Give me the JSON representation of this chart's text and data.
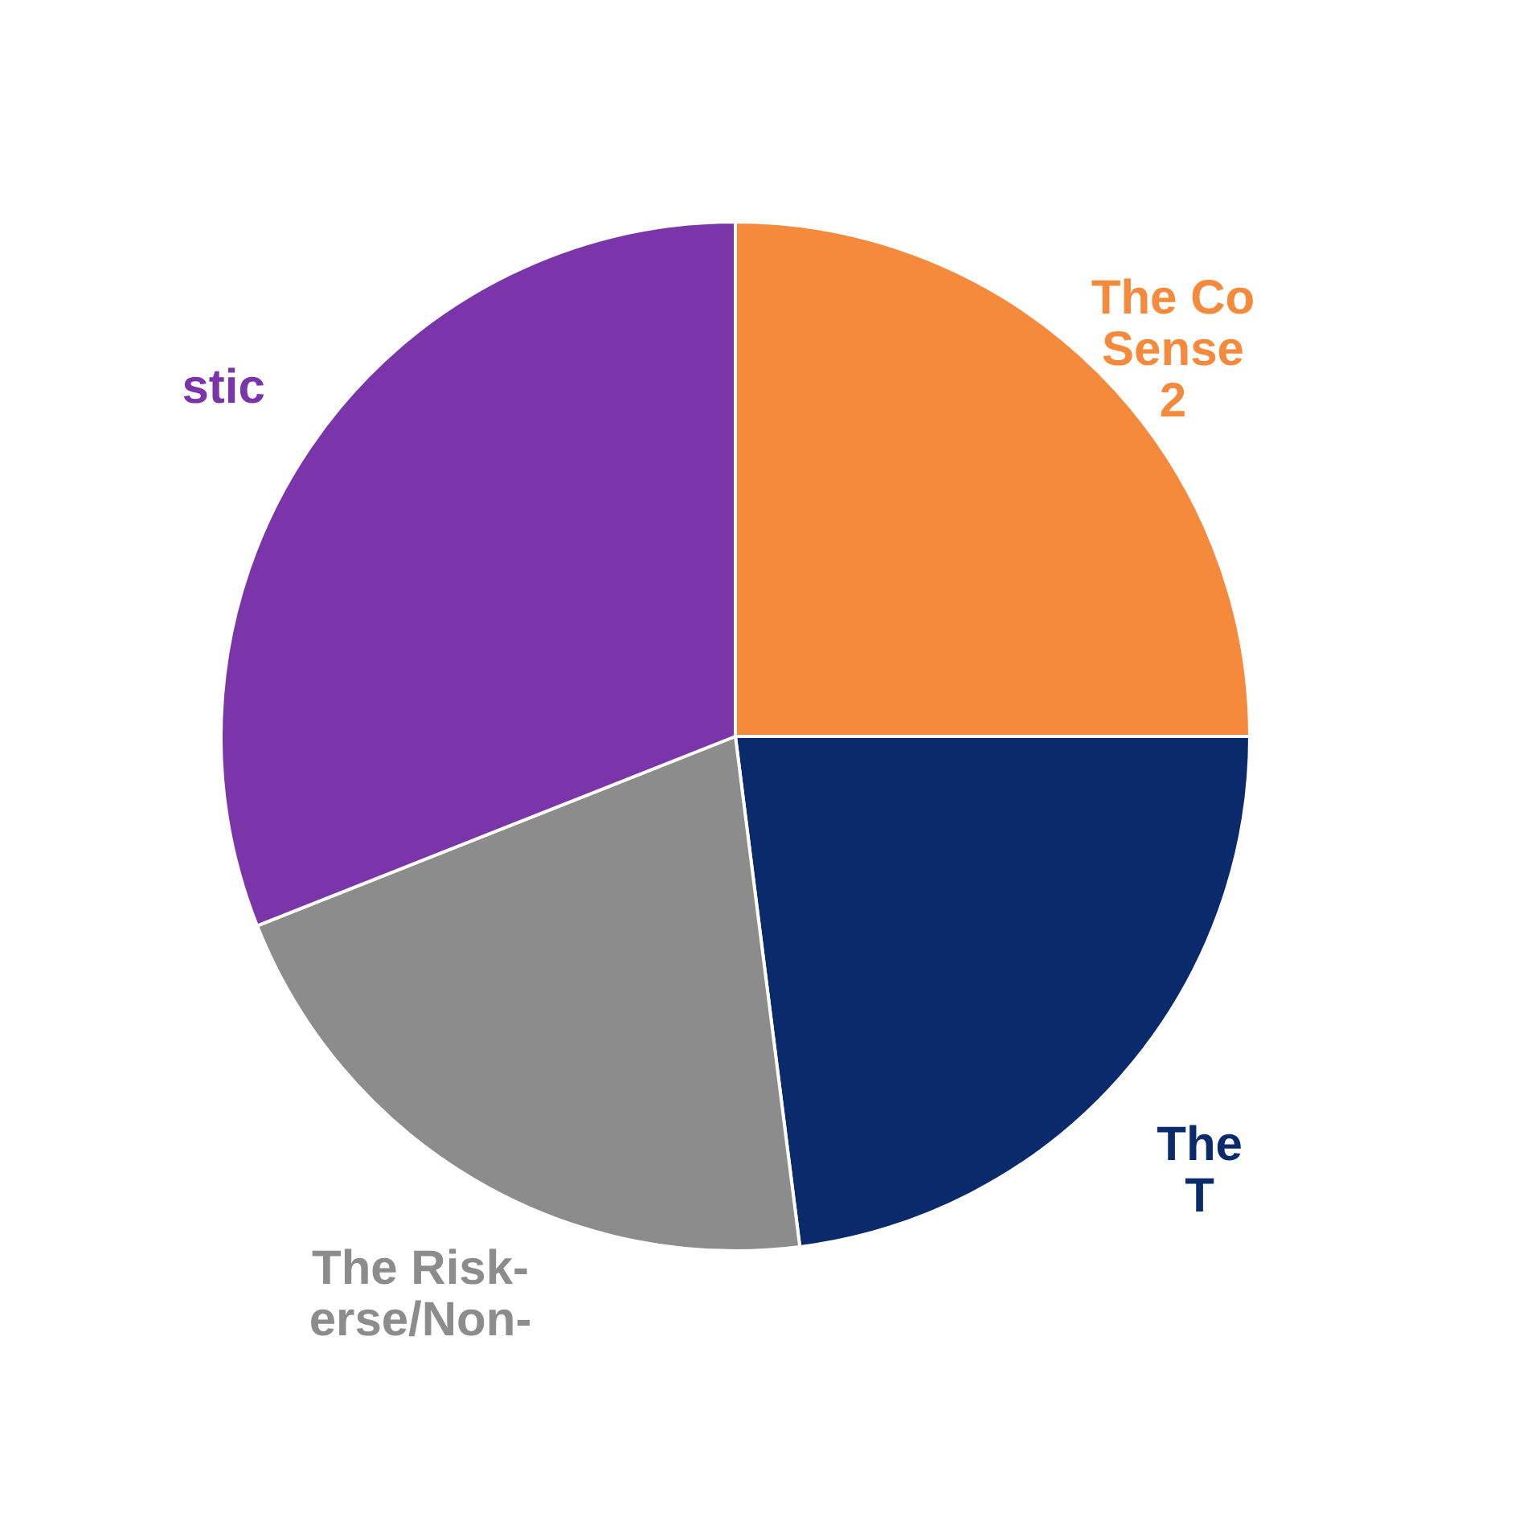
{
  "chart_data": {
    "type": "pie",
    "categories": [
      "The Co\nSense\n2",
      "The\nT",
      "The Risk-\nerse/Non-",
      "stic"
    ],
    "values": [
      25,
      23,
      21,
      31
    ],
    "colors": [
      "#f58a3c",
      "#0a2a6b",
      "#8c8c8c",
      "#7a35a8"
    ],
    "legend": false
  }
}
